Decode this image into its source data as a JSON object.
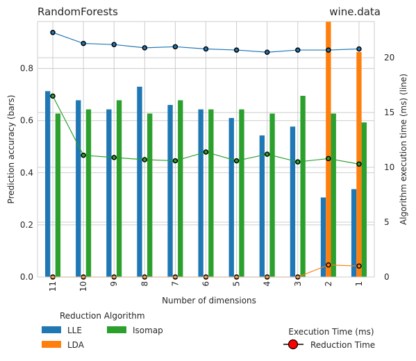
{
  "chart_data": {
    "type": "bar",
    "title_left": "RandomForests",
    "title_right": "wine.data",
    "xlabel": "Number of dimensions",
    "ylabel": "Prediction accuracy (bars)",
    "ylabel_right": "Algorithm execution time (ms) (line)",
    "categories": [
      "11",
      "10",
      "9",
      "8",
      "7",
      "6",
      "5",
      "4",
      "3",
      "2",
      "1"
    ],
    "ylim": [
      0,
      0.98
    ],
    "yticks": [
      0.0,
      0.2,
      0.4,
      0.6,
      0.8
    ],
    "ylim_right": [
      0,
      23.3
    ],
    "yticks_right": [
      0,
      5,
      10,
      15,
      20
    ],
    "grid": true,
    "bar_series": [
      {
        "name": "LLE",
        "color": "#1f77b4",
        "values": [
          0.713,
          0.678,
          0.643,
          0.73,
          0.66,
          0.643,
          0.61,
          0.543,
          0.577,
          0.305,
          0.337
        ]
      },
      {
        "name": "LDA",
        "color": "#ff7f0e",
        "values": [
          0,
          0,
          0,
          0,
          0,
          0,
          0,
          0,
          0,
          0.98,
          0.863
        ]
      },
      {
        "name": "Isomap",
        "color": "#2ca02c",
        "values": [
          0.627,
          0.643,
          0.678,
          0.627,
          0.678,
          0.643,
          0.643,
          0.627,
          0.695,
          0.627,
          0.593
        ]
      }
    ],
    "line_series": [
      {
        "name": "LLE",
        "color": "#1f77b4",
        "values": [
          22.3,
          21.3,
          21.2,
          20.9,
          21.0,
          20.8,
          20.7,
          20.5,
          20.7,
          20.7,
          20.8
        ]
      },
      {
        "name": "LDA",
        "color": "#ff7f0e",
        "values": [
          0,
          0,
          0,
          0,
          0,
          0,
          0,
          0,
          0,
          1.1,
          1.0
        ]
      },
      {
        "name": "Isomap",
        "color": "#2ca02c",
        "values": [
          16.5,
          11.1,
          10.9,
          10.7,
          10.6,
          11.4,
          10.6,
          11.2,
          10.5,
          10.8,
          10.3
        ]
      }
    ],
    "legend_placement": "bottom-left",
    "legend_title": "Reduction Algorithm",
    "legend_entries": [
      "LLE",
      "LDA",
      "Isomap"
    ],
    "legend2_placement": "bottom-right",
    "legend2_title": "Execution Time (ms)",
    "legend2_entry": "Reduction Time",
    "legend2_marker_color": "#ff0000"
  }
}
